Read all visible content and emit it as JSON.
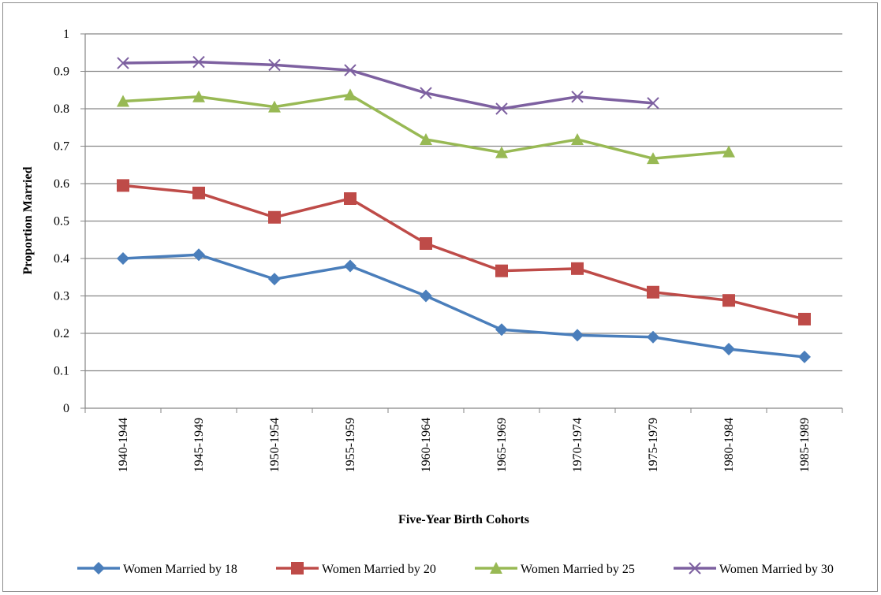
{
  "chart_data": {
    "type": "line",
    "title": "",
    "xlabel": "Five-Year Birth Cohorts",
    "ylabel": "Proportion Married",
    "ylim": [
      0,
      1
    ],
    "yticks": [
      "0",
      "0.1",
      "0.2",
      "0.3",
      "0.4",
      "0.5",
      "0.6",
      "0.7",
      "0.8",
      "0.9",
      "1"
    ],
    "grid": true,
    "legend_position": "bottom",
    "categories": [
      "1940-1944",
      "1945-1949",
      "1950-1954",
      "1955-1959",
      "1960-1964",
      "1965-1969",
      "1970-1974",
      "1975-1979",
      "1980-1984",
      "1985-1989"
    ],
    "series": [
      {
        "name": "Women Married by 18",
        "color": "#4a7ebb",
        "marker": "diamond",
        "values": [
          0.4,
          0.41,
          0.345,
          0.38,
          0.3,
          0.21,
          0.195,
          0.19,
          0.158,
          0.137
        ]
      },
      {
        "name": "Women Married by 20",
        "color": "#be4b48",
        "marker": "square",
        "values": [
          0.595,
          0.575,
          0.51,
          0.56,
          0.44,
          0.367,
          0.373,
          0.31,
          0.288,
          0.238
        ]
      },
      {
        "name": "Women Married by 25",
        "color": "#98b954",
        "marker": "triangle",
        "values": [
          0.82,
          0.832,
          0.805,
          0.837,
          0.718,
          0.683,
          0.718,
          0.667,
          0.685,
          null
        ]
      },
      {
        "name": "Women Married by 30",
        "color": "#7d60a0",
        "marker": "x",
        "values": [
          0.922,
          0.925,
          0.917,
          0.903,
          0.842,
          0.8,
          0.832,
          0.815,
          null,
          null
        ]
      }
    ]
  }
}
